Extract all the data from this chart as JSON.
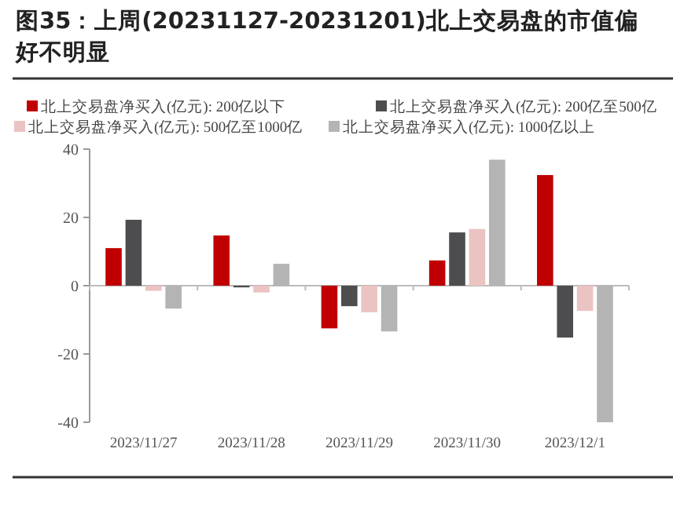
{
  "chart_data": {
    "type": "bar",
    "title": "图35：上周(20231127-20231201)北上交易盘的市值偏好不明显",
    "categories": [
      "2023/11/27",
      "2023/11/28",
      "2023/11/29",
      "2023/11/30",
      "2023/12/1"
    ],
    "series": [
      {
        "name": "北上交易盘净买入(亿元): 200亿以下",
        "color": "#c00000",
        "values": [
          11,
          14.7,
          -12.5,
          7.4,
          32.4
        ]
      },
      {
        "name": "北上交易盘净买入(亿元): 200亿至500亿",
        "color": "#4d4d4f",
        "values": [
          19.3,
          -0.5,
          -6,
          15.6,
          -15.2
        ]
      },
      {
        "name": "北上交易盘净买入(亿元): 500亿至1000亿",
        "color": "#ebc3c3",
        "values": [
          -1.5,
          -2,
          -7.8,
          16.6,
          -7.4
        ]
      },
      {
        "name": "北上交易盘净买入(亿元): 1000亿以上",
        "color": "#b4b4b4",
        "values": [
          -6.7,
          6.4,
          -13.4,
          36.9,
          -40
        ]
      }
    ],
    "ylim": [
      -40,
      40
    ],
    "yticks": [
      -40,
      -20,
      0,
      20,
      40
    ],
    "legend": "top"
  }
}
